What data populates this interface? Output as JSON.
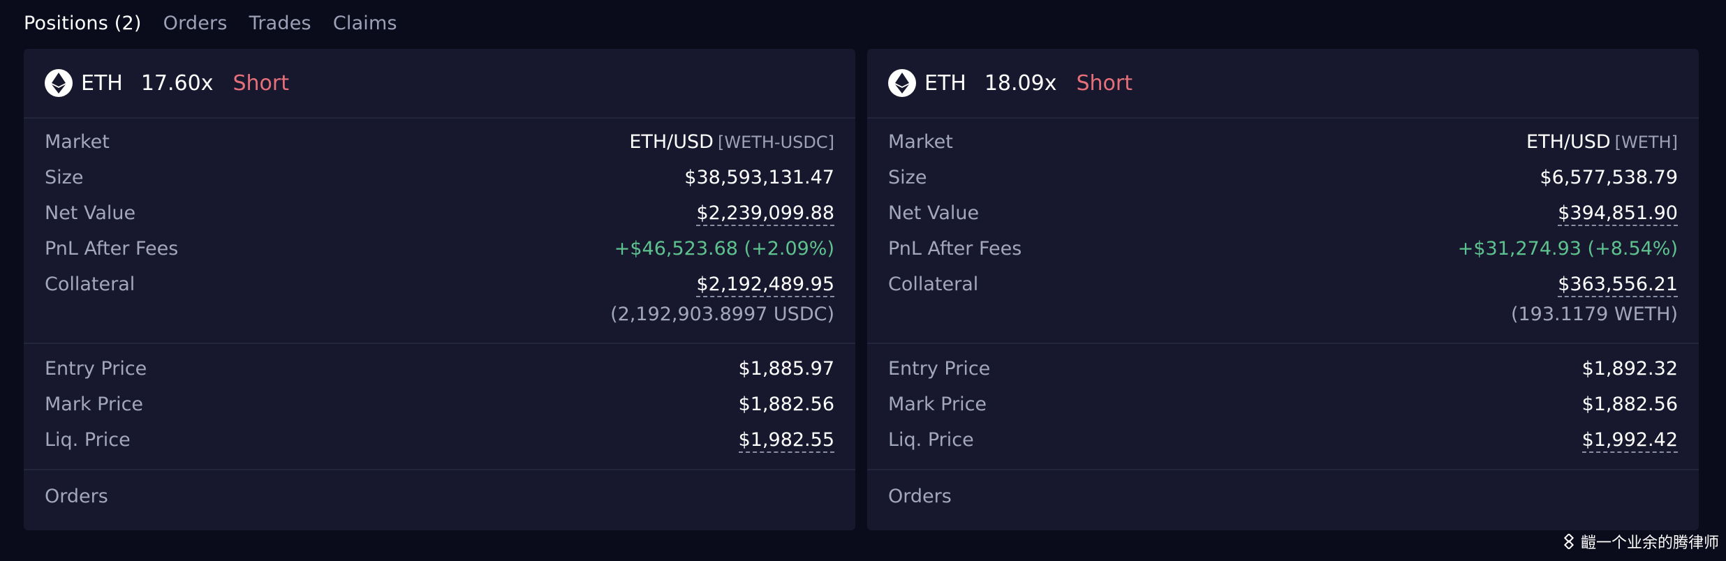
{
  "tabs": [
    {
      "label": "Positions (2)",
      "active": true
    },
    {
      "label": "Orders",
      "active": false
    },
    {
      "label": "Trades",
      "active": false
    },
    {
      "label": "Claims",
      "active": false
    }
  ],
  "positions": [
    {
      "symbol": "ETH",
      "icon": "eth-icon",
      "leverage": "17.60x",
      "side": "Short",
      "rows": {
        "market": {
          "label": "Market",
          "value": "ETH/USD",
          "tag": "[WETH-USDC]"
        },
        "size": {
          "label": "Size",
          "value": "$38,593,131.47"
        },
        "net_value": {
          "label": "Net Value",
          "value": "$2,239,099.88"
        },
        "pnl": {
          "label": "PnL After Fees",
          "value": "+$46,523.68 (+2.09%)"
        },
        "collateral": {
          "label": "Collateral",
          "value": "$2,192,489.95",
          "sub": "(2,192,903.8997 USDC)"
        },
        "entry_price": {
          "label": "Entry Price",
          "value": "$1,885.97"
        },
        "mark_price": {
          "label": "Mark Price",
          "value": "$1,882.56"
        },
        "liq_price": {
          "label": "Liq. Price",
          "value": "$1,982.55"
        }
      },
      "orders_label": "Orders"
    },
    {
      "symbol": "ETH",
      "icon": "eth-icon",
      "leverage": "18.09x",
      "side": "Short",
      "rows": {
        "market": {
          "label": "Market",
          "value": "ETH/USD",
          "tag": "[WETH]"
        },
        "size": {
          "label": "Size",
          "value": "$6,577,538.79"
        },
        "net_value": {
          "label": "Net Value",
          "value": "$394,851.90"
        },
        "pnl": {
          "label": "PnL After Fees",
          "value": "+$31,274.93 (+8.54%)"
        },
        "collateral": {
          "label": "Collateral",
          "value": "$363,556.21",
          "sub": "(193.1179 WETH)"
        },
        "entry_price": {
          "label": "Entry Price",
          "value": "$1,892.32"
        },
        "mark_price": {
          "label": "Mark Price",
          "value": "$1,882.56"
        },
        "liq_price": {
          "label": "Liq. Price",
          "value": "$1,992.42"
        }
      },
      "orders_label": "Orders"
    }
  ],
  "watermark": {
    "text": "䶣一个业余的腾律师",
    "icon": "binance-square-icon"
  },
  "colors": {
    "background": "#0b0c1b",
    "card": "#17182e",
    "short": "#e5707a",
    "positive": "#5ec28e"
  }
}
